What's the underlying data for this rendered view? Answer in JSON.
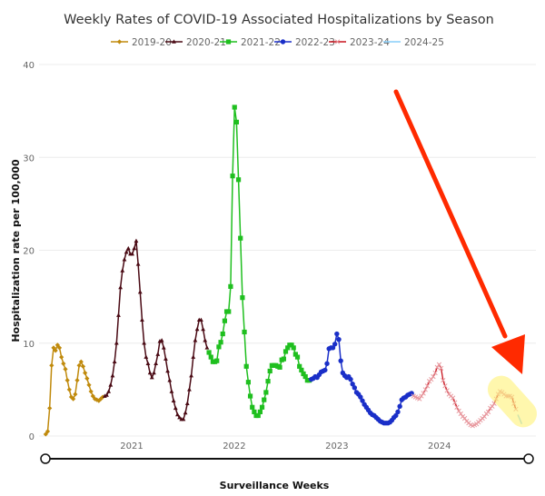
{
  "chart_data": {
    "type": "line",
    "title": "Weekly Rates of COVID-19 Associated Hospitalizations by Season",
    "xlabel": "Surveillance Weeks",
    "ylabel": "Hospitalization rate per 100,000",
    "ylim": [
      0,
      40
    ],
    "yticks": [
      "0",
      "10",
      "20",
      "30",
      "40"
    ],
    "xticks": [
      {
        "date": "2021-01-01",
        "label": "2021"
      },
      {
        "date": "2022-01-01",
        "label": "2022"
      },
      {
        "date": "2023-01-01",
        "label": "2023"
      },
      {
        "date": "2024-01-01",
        "label": "2024"
      }
    ],
    "grid": "horizontal",
    "legend_position": "top",
    "series": [
      {
        "name": "2019-20",
        "color": "#c08a0c",
        "marker": "diamond",
        "points": [
          [
            "2020-03-01",
            0.2
          ],
          [
            "2020-03-08",
            0.5
          ],
          [
            "2020-03-15",
            3
          ],
          [
            "2020-03-22",
            7.6
          ],
          [
            "2020-03-29",
            9.5
          ],
          [
            "2020-04-05",
            9.2
          ],
          [
            "2020-04-12",
            9.8
          ],
          [
            "2020-04-19",
            9.5
          ],
          [
            "2020-04-26",
            8.5
          ],
          [
            "2020-05-03",
            7.8
          ],
          [
            "2020-05-10",
            7.2
          ],
          [
            "2020-05-17",
            6
          ],
          [
            "2020-05-24",
            5
          ],
          [
            "2020-05-31",
            4.2
          ],
          [
            "2020-06-07",
            4.0
          ],
          [
            "2020-06-14",
            4.5
          ],
          [
            "2020-06-21",
            6
          ],
          [
            "2020-06-28",
            7.6
          ],
          [
            "2020-07-05",
            8
          ],
          [
            "2020-07-12",
            7.5
          ],
          [
            "2020-07-19",
            6.8
          ],
          [
            "2020-07-26",
            6.2
          ],
          [
            "2020-08-02",
            5.5
          ],
          [
            "2020-08-09",
            4.8
          ],
          [
            "2020-08-16",
            4.3
          ],
          [
            "2020-08-23",
            4.0
          ],
          [
            "2020-08-30",
            3.9
          ],
          [
            "2020-09-06",
            3.8
          ],
          [
            "2020-09-13",
            4.0
          ],
          [
            "2020-09-20",
            4.2
          ]
        ]
      },
      {
        "name": "2020-21",
        "color": "#4a0a14",
        "marker": "triangle",
        "points": [
          [
            "2020-09-27",
            4.3
          ],
          [
            "2020-10-04",
            4.4
          ],
          [
            "2020-10-11",
            4.8
          ],
          [
            "2020-10-18",
            5.5
          ],
          [
            "2020-10-25",
            6.5
          ],
          [
            "2020-11-01",
            8
          ],
          [
            "2020-11-08",
            10
          ],
          [
            "2020-11-15",
            13
          ],
          [
            "2020-11-22",
            16
          ],
          [
            "2020-11-29",
            17.8
          ],
          [
            "2020-12-06",
            19
          ],
          [
            "2020-12-13",
            19.8
          ],
          [
            "2020-12-20",
            20.2
          ],
          [
            "2020-12-27",
            19.6
          ],
          [
            "2021-01-03",
            19.6
          ],
          [
            "2021-01-10",
            20.2
          ],
          [
            "2021-01-17",
            21
          ],
          [
            "2021-01-24",
            18.5
          ],
          [
            "2021-01-31",
            15.5
          ],
          [
            "2021-02-07",
            12.5
          ],
          [
            "2021-02-14",
            10
          ],
          [
            "2021-02-21",
            8.5
          ],
          [
            "2021-02-28",
            7.8
          ],
          [
            "2021-03-07",
            6.8
          ],
          [
            "2021-03-14",
            6.3
          ],
          [
            "2021-03-21",
            6.8
          ],
          [
            "2021-03-28",
            7.8
          ],
          [
            "2021-04-04",
            8.8
          ],
          [
            "2021-04-11",
            10.2
          ],
          [
            "2021-04-18",
            10.3
          ],
          [
            "2021-04-25",
            9.5
          ],
          [
            "2021-05-02",
            8.3
          ],
          [
            "2021-05-09",
            7
          ],
          [
            "2021-05-16",
            6
          ],
          [
            "2021-05-23",
            4.8
          ],
          [
            "2021-05-30",
            3.8
          ],
          [
            "2021-06-06",
            3
          ],
          [
            "2021-06-13",
            2.3
          ],
          [
            "2021-06-20",
            2
          ],
          [
            "2021-06-27",
            1.8
          ],
          [
            "2021-07-04",
            1.8
          ],
          [
            "2021-07-11",
            2.5
          ],
          [
            "2021-07-18",
            3.5
          ],
          [
            "2021-07-25",
            5
          ],
          [
            "2021-08-01",
            6.5
          ],
          [
            "2021-08-08",
            8.5
          ],
          [
            "2021-08-15",
            10.3
          ],
          [
            "2021-08-22",
            11.5
          ],
          [
            "2021-08-29",
            12.5
          ],
          [
            "2021-09-05",
            12.5
          ],
          [
            "2021-09-12",
            11.5
          ],
          [
            "2021-09-19",
            10.3
          ],
          [
            "2021-09-26",
            9.5
          ]
        ]
      },
      {
        "name": "2021-22",
        "color": "#1fbf1f",
        "marker": "square",
        "points": [
          [
            "2021-10-03",
            9.0
          ],
          [
            "2021-10-10",
            8.5
          ],
          [
            "2021-10-17",
            8.0
          ],
          [
            "2021-10-24",
            8.0
          ],
          [
            "2021-10-31",
            8.1
          ],
          [
            "2021-11-07",
            9.6
          ],
          [
            "2021-11-14",
            10.1
          ],
          [
            "2021-11-21",
            11
          ],
          [
            "2021-11-28",
            12.4
          ],
          [
            "2021-12-05",
            13.4
          ],
          [
            "2021-12-12",
            13.4
          ],
          [
            "2021-12-19",
            16.1
          ],
          [
            "2021-12-26",
            28
          ],
          [
            "2022-01-02",
            35.4
          ],
          [
            "2022-01-09",
            33.8
          ],
          [
            "2022-01-16",
            27.6
          ],
          [
            "2022-01-23",
            21.3
          ],
          [
            "2022-01-30",
            14.9
          ],
          [
            "2022-02-06",
            11.2
          ],
          [
            "2022-02-13",
            7.5
          ],
          [
            "2022-02-20",
            5.8
          ],
          [
            "2022-02-27",
            4.3
          ],
          [
            "2022-03-06",
            3.1
          ],
          [
            "2022-03-13",
            2.6
          ],
          [
            "2022-03-20",
            2.2
          ],
          [
            "2022-03-27",
            2.2
          ],
          [
            "2022-04-03",
            2.6
          ],
          [
            "2022-04-10",
            3.1
          ],
          [
            "2022-04-17",
            3.9
          ],
          [
            "2022-04-24",
            4.7
          ],
          [
            "2022-05-01",
            5.9
          ],
          [
            "2022-05-08",
            7.0
          ],
          [
            "2022-05-15",
            7.6
          ],
          [
            "2022-05-22",
            7.6
          ],
          [
            "2022-05-29",
            7.6
          ],
          [
            "2022-06-05",
            7.5
          ],
          [
            "2022-06-12",
            7.4
          ],
          [
            "2022-06-19",
            8.2
          ],
          [
            "2022-06-26",
            8.3
          ],
          [
            "2022-07-03",
            9.1
          ],
          [
            "2022-07-10",
            9.5
          ],
          [
            "2022-07-17",
            9.8
          ],
          [
            "2022-07-24",
            9.8
          ],
          [
            "2022-07-31",
            9.5
          ],
          [
            "2022-08-07",
            8.8
          ],
          [
            "2022-08-14",
            8.5
          ],
          [
            "2022-08-21",
            7.5
          ],
          [
            "2022-08-28",
            7.1
          ],
          [
            "2022-09-04",
            6.7
          ],
          [
            "2022-09-11",
            6.4
          ],
          [
            "2022-09-18",
            6.0
          ],
          [
            "2022-09-25",
            6.0
          ]
        ]
      },
      {
        "name": "2022-23",
        "color": "#1a2fc8",
        "marker": "circle",
        "points": [
          [
            "2022-10-02",
            6.1
          ],
          [
            "2022-10-09",
            6.2
          ],
          [
            "2022-10-16",
            6.4
          ],
          [
            "2022-10-23",
            6.3
          ],
          [
            "2022-10-30",
            6.6
          ],
          [
            "2022-11-06",
            6.9
          ],
          [
            "2022-11-13",
            7.0
          ],
          [
            "2022-11-20",
            7.1
          ],
          [
            "2022-11-27",
            7.8
          ],
          [
            "2022-12-04",
            9.4
          ],
          [
            "2022-12-11",
            9.5
          ],
          [
            "2022-12-18",
            9.5
          ],
          [
            "2022-12-25",
            9.9
          ],
          [
            "2023-01-01",
            11.0
          ],
          [
            "2023-01-08",
            10.4
          ],
          [
            "2023-01-15",
            8.1
          ],
          [
            "2023-01-22",
            6.8
          ],
          [
            "2023-01-29",
            6.5
          ],
          [
            "2023-02-05",
            6.3
          ],
          [
            "2023-02-12",
            6.4
          ],
          [
            "2023-02-19",
            6.1
          ],
          [
            "2023-02-26",
            5.6
          ],
          [
            "2023-03-05",
            5.2
          ],
          [
            "2023-03-12",
            4.7
          ],
          [
            "2023-03-19",
            4.5
          ],
          [
            "2023-03-26",
            4.2
          ],
          [
            "2023-04-02",
            3.8
          ],
          [
            "2023-04-09",
            3.4
          ],
          [
            "2023-04-16",
            3.1
          ],
          [
            "2023-04-23",
            2.8
          ],
          [
            "2023-04-30",
            2.5
          ],
          [
            "2023-05-07",
            2.3
          ],
          [
            "2023-05-14",
            2.2
          ],
          [
            "2023-05-21",
            2.0
          ],
          [
            "2023-05-28",
            1.8
          ],
          [
            "2023-06-04",
            1.6
          ],
          [
            "2023-06-11",
            1.5
          ],
          [
            "2023-06-18",
            1.4
          ],
          [
            "2023-06-25",
            1.4
          ],
          [
            "2023-07-02",
            1.4
          ],
          [
            "2023-07-09",
            1.5
          ],
          [
            "2023-07-16",
            1.7
          ],
          [
            "2023-07-23",
            2.0
          ],
          [
            "2023-07-30",
            2.2
          ],
          [
            "2023-08-06",
            2.6
          ],
          [
            "2023-08-13",
            3.2
          ],
          [
            "2023-08-20",
            3.9
          ],
          [
            "2023-08-27",
            4.1
          ],
          [
            "2023-09-03",
            4.2
          ],
          [
            "2023-09-10",
            4.4
          ],
          [
            "2023-09-17",
            4.5
          ],
          [
            "2023-09-24",
            4.6
          ]
        ]
      },
      {
        "name": "2023-24",
        "color": "#c8141e",
        "marker": "x",
        "points": [
          [
            "2023-10-01",
            4.3
          ],
          [
            "2023-10-08",
            4.2
          ],
          [
            "2023-10-15",
            4.1
          ],
          [
            "2023-10-22",
            4.0
          ],
          [
            "2023-10-29",
            4.3
          ],
          [
            "2023-11-05",
            4.6
          ],
          [
            "2023-11-12",
            5.0
          ],
          [
            "2023-11-19",
            5.4
          ],
          [
            "2023-11-26",
            5.9
          ],
          [
            "2023-12-03",
            6.1
          ],
          [
            "2023-12-10",
            6.4
          ],
          [
            "2023-12-17",
            6.8
          ],
          [
            "2023-12-24",
            7.4
          ],
          [
            "2023-12-31",
            7.7
          ],
          [
            "2024-01-07",
            7.3
          ],
          [
            "2024-01-14",
            6.0
          ],
          [
            "2024-01-21",
            5.4
          ],
          [
            "2024-01-28",
            4.9
          ],
          [
            "2024-02-04",
            4.5
          ],
          [
            "2024-02-11",
            4.3
          ],
          [
            "2024-02-18",
            4.1
          ],
          [
            "2024-02-25",
            3.6
          ],
          [
            "2024-03-03",
            3.1
          ],
          [
            "2024-03-10",
            2.7
          ],
          [
            "2024-03-17",
            2.4
          ],
          [
            "2024-03-24",
            2.1
          ],
          [
            "2024-03-31",
            1.9
          ],
          [
            "2024-04-07",
            1.6
          ],
          [
            "2024-04-14",
            1.4
          ],
          [
            "2024-04-21",
            1.2
          ],
          [
            "2024-04-28",
            1.1
          ],
          [
            "2024-05-05",
            1.2
          ],
          [
            "2024-05-12",
            1.3
          ],
          [
            "2024-05-19",
            1.5
          ],
          [
            "2024-05-26",
            1.7
          ],
          [
            "2024-06-02",
            1.9
          ],
          [
            "2024-06-09",
            2.1
          ],
          [
            "2024-06-16",
            2.4
          ],
          [
            "2024-06-23",
            2.6
          ],
          [
            "2024-06-30",
            3.0
          ],
          [
            "2024-07-07",
            3.2
          ],
          [
            "2024-07-14",
            3.5
          ],
          [
            "2024-07-21",
            4.0
          ],
          [
            "2024-07-28",
            4.5
          ],
          [
            "2024-08-04",
            4.8
          ],
          [
            "2024-08-11",
            4.7
          ],
          [
            "2024-08-18",
            4.5
          ],
          [
            "2024-08-25",
            4.3
          ],
          [
            "2024-09-01",
            4.3
          ],
          [
            "2024-09-08",
            4.3
          ],
          [
            "2024-09-15",
            4.2
          ],
          [
            "2024-09-22",
            3.5
          ],
          [
            "2024-09-29",
            2.9
          ]
        ]
      },
      {
        "name": "2024-25",
        "color": "#87cefa",
        "marker": "none",
        "points": [
          [
            "2024-10-06",
            2.3
          ],
          [
            "2024-10-13",
            1.8
          ],
          [
            "2024-10-20",
            1.3
          ]
        ]
      }
    ],
    "annotations": {
      "arrow_color": "#ff2a00",
      "highlight_color": "#fff176"
    }
  }
}
